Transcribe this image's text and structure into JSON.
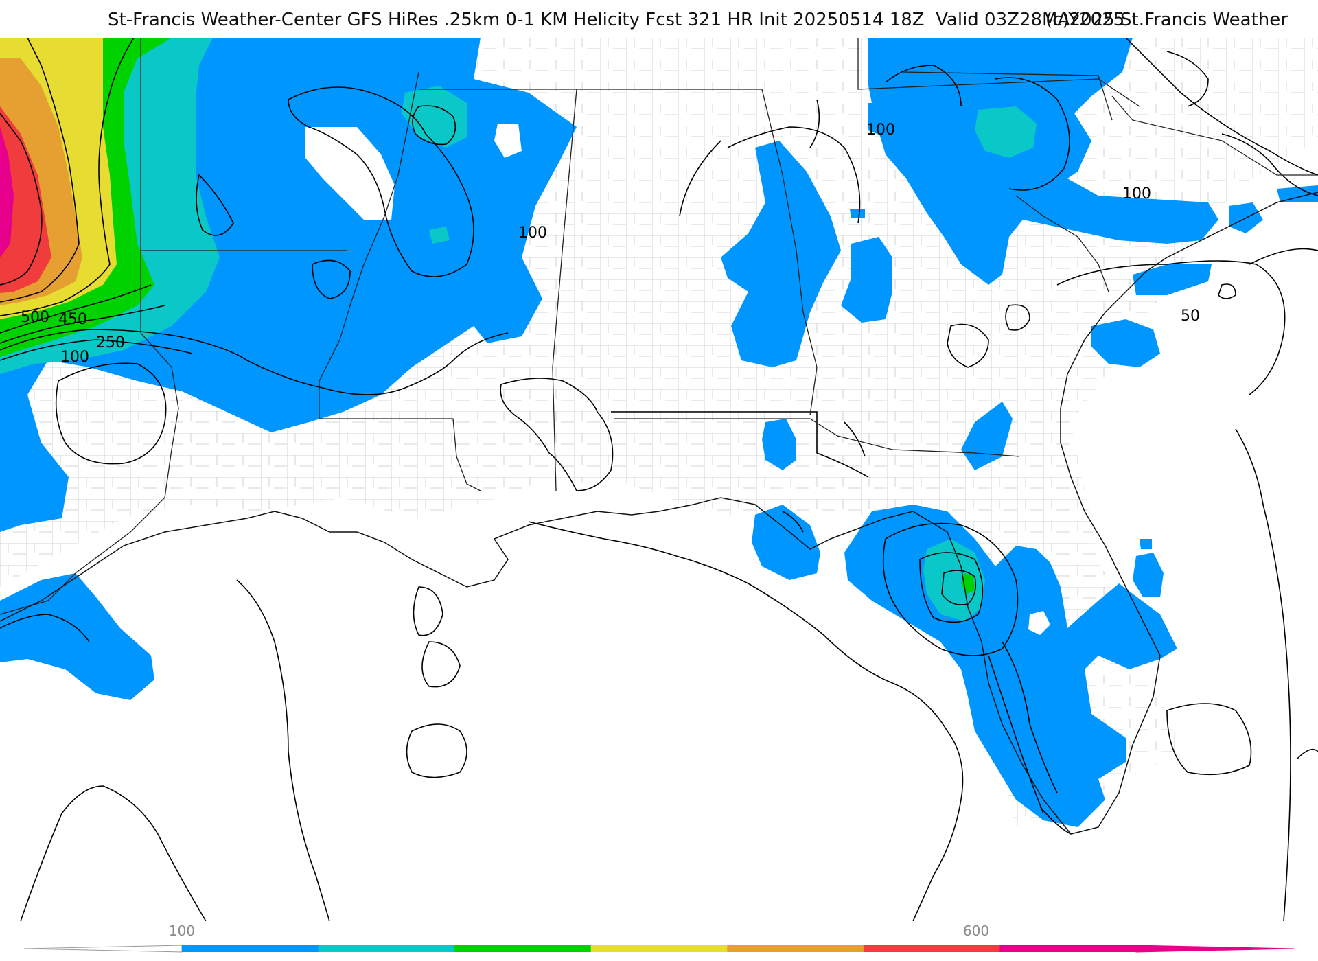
{
  "header": {
    "title": "St-Francis Weather-Center GFS HiRes .25km 0-1 KM Helicity Fcst 321 HR Init 20250514 18Z  Valid 03Z28MAY2025",
    "copyright": "(c)2025 St.Francis Weather"
  },
  "map": {
    "contour_labels": [
      {
        "text": "500",
        "name": "contour-label-500"
      },
      {
        "text": "450",
        "name": "contour-label-450"
      },
      {
        "text": "250",
        "name": "contour-label-250"
      },
      {
        "text": "100",
        "name": "contour-label-100-west"
      },
      {
        "text": "100",
        "name": "contour-label-100-central"
      },
      {
        "text": "100",
        "name": "contour-label-100-georgia"
      },
      {
        "text": "100",
        "name": "contour-label-100-carolina"
      },
      {
        "text": "50",
        "name": "contour-label-50"
      }
    ],
    "colors": {
      "band_100": "#0096ff",
      "band_150": "#0ac8c8",
      "band_200": "#00d200",
      "band_250": "#e6dc32",
      "band_300": "#e6a032",
      "band_350": "#f03c3c",
      "band_400": "#e6008c",
      "contour": "#000000",
      "border": "#202020",
      "county": "#bdbdbd"
    }
  },
  "colorbar": {
    "tick_labels": [
      "100",
      "600"
    ],
    "colors": [
      "#0096ff",
      "#0ac8c8",
      "#00d200",
      "#e6dc32",
      "#e6a032",
      "#f03c3c",
      "#e6008c"
    ]
  }
}
